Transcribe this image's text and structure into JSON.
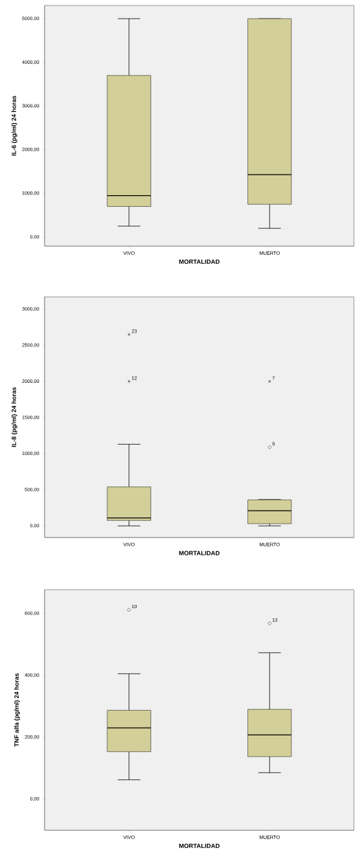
{
  "chart_data": [
    {
      "type": "box",
      "xlabel": "MORTALIDAD",
      "ylabel": "IL-6 (pg/ml) 24 horas",
      "categories": [
        "VIVO",
        "MUERTO"
      ],
      "color": "#d3cf98",
      "boxes": [
        {
          "low": 250,
          "q1": 700,
          "median": 950,
          "q3": 3700,
          "high": 5000
        },
        {
          "low": 200,
          "q1": 750,
          "median": 1430,
          "q3": 5000,
          "high": 5000
        }
      ],
      "ylim": [
        -206,
        5302
      ],
      "yticks": [
        {
          "value": 0,
          "label": "0,00"
        },
        {
          "value": 1000,
          "label": "1000,00"
        },
        {
          "value": 2000,
          "label": "2000,00"
        },
        {
          "value": 3000,
          "label": "3000,00"
        },
        {
          "value": 4000,
          "label": "4000,00"
        },
        {
          "value": 5000,
          "label": "5000,00"
        }
      ]
    },
    {
      "type": "box",
      "xlabel": "MORTALIDAD",
      "ylabel": "IL-8 (pg/ml) 24 horas",
      "categories": [
        "VIVO",
        "MUERTO"
      ],
      "color": "#d3cf98",
      "boxes": [
        {
          "low": 0,
          "q1": 75,
          "median": 110,
          "q3": 540,
          "high": 1130
        },
        {
          "low": 0,
          "q1": 30,
          "median": 210,
          "q3": 360,
          "high": 365
        }
      ],
      "series": [
        {
          "type": "scatter",
          "marker": "cross",
          "color": "#000000",
          "x": [
            "VIVO",
            "VIVO",
            "MUERTO"
          ],
          "values": [
            2000,
            2650,
            2000
          ]
        },
        {
          "type": "scatter",
          "marker": "circle",
          "color": "#000000",
          "x": [
            "MUERTO"
          ],
          "values": [
            1090
          ]
        }
      ],
      "annotations": [
        {
          "text": "12",
          "x": "VIVO",
          "y": 2000
        },
        {
          "text": "23",
          "x": "VIVO",
          "y": 2650
        },
        {
          "text": "7",
          "x": "MUERTO",
          "y": 2000
        },
        {
          "text": "9",
          "x": "MUERTO",
          "y": 1090
        }
      ],
      "ylim": [
        -160,
        3170
      ],
      "yticks": [
        {
          "value": 0,
          "label": "0,00"
        },
        {
          "value": 500,
          "label": "500,00"
        },
        {
          "value": 1000,
          "label": "1000,00"
        },
        {
          "value": 1500,
          "label": "1500,00"
        },
        {
          "value": 2000,
          "label": "2000,00"
        },
        {
          "value": 2500,
          "label": "2500,00"
        },
        {
          "value": 3000,
          "label": "3000,00"
        }
      ]
    },
    {
      "type": "box",
      "xlabel": "MORTALIDAD",
      "ylabel": "TNF alfa (pg/ml) 24 horas",
      "categories": [
        "VIVO",
        "MUERTO"
      ],
      "color": "#d3cf98",
      "boxes": [
        {
          "low": 62,
          "q1": 153,
          "median": 230,
          "q3": 287,
          "high": 405
        },
        {
          "low": 85,
          "q1": 137,
          "median": 207,
          "q3": 290,
          "high": 473
        }
      ],
      "series": [
        {
          "type": "scatter",
          "marker": "circle",
          "color": "#000000",
          "x": [
            "VIVO",
            "MUERTO"
          ],
          "values": [
            612,
            568
          ]
        }
      ],
      "annotations": [
        {
          "text": "10",
          "x": "VIVO",
          "y": 612
        },
        {
          "text": "13",
          "x": "MUERTO",
          "y": 568
        }
      ],
      "ylim": [
        -101,
        677
      ],
      "yticks": [
        {
          "value": 0,
          "label": "0,00"
        },
        {
          "value": 200,
          "label": "200,00"
        },
        {
          "value": 400,
          "label": "400,00"
        },
        {
          "value": 600,
          "label": "600,00"
        }
      ]
    }
  ]
}
